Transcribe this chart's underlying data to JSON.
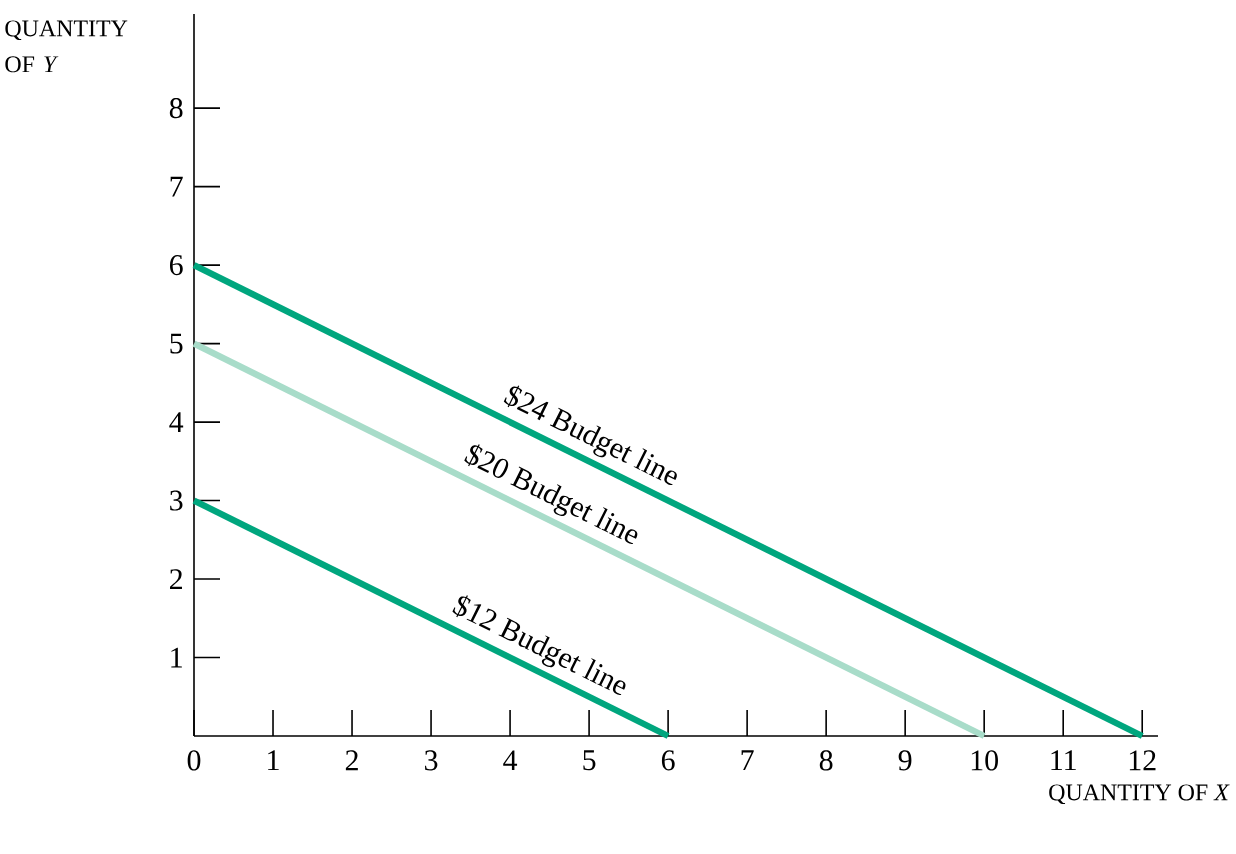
{
  "chart_data": {
    "type": "line",
    "xlabel": "QUANTITY OF *X*",
    "ylabel": "QUANTITY OF *Y*",
    "series": [
      {
        "x": [
          0,
          12
        ],
        "values": [
          6,
          0
        ],
        "color": "#00a67e"
      },
      {
        "x": [
          0,
          10
        ],
        "values": [
          5,
          0
        ],
        "color": "#a8dcc9"
      },
      {
        "x": [
          0,
          6
        ],
        "values": [
          3,
          0
        ],
        "color": "#00a67e"
      }
    ],
    "line_style": "solid",
    "xlim": [
      0,
      12.2
    ],
    "ylim": [
      0,
      9.2
    ],
    "xticks": [
      0,
      1,
      2,
      3,
      4,
      5,
      6,
      7,
      8,
      9,
      10,
      11,
      12
    ],
    "yticks": [
      1,
      2,
      3,
      4,
      5,
      6,
      7,
      8
    ],
    "annotations": [
      {
        "text": "$24 Budget line",
        "x": 4.9,
        "y": 3.55
      },
      {
        "text": "$20 Budget line",
        "x": 4.4,
        "y": 2.8
      },
      {
        "text": "$12 Budget line",
        "x": 4.25,
        "y": 0.875
      }
    ]
  }
}
